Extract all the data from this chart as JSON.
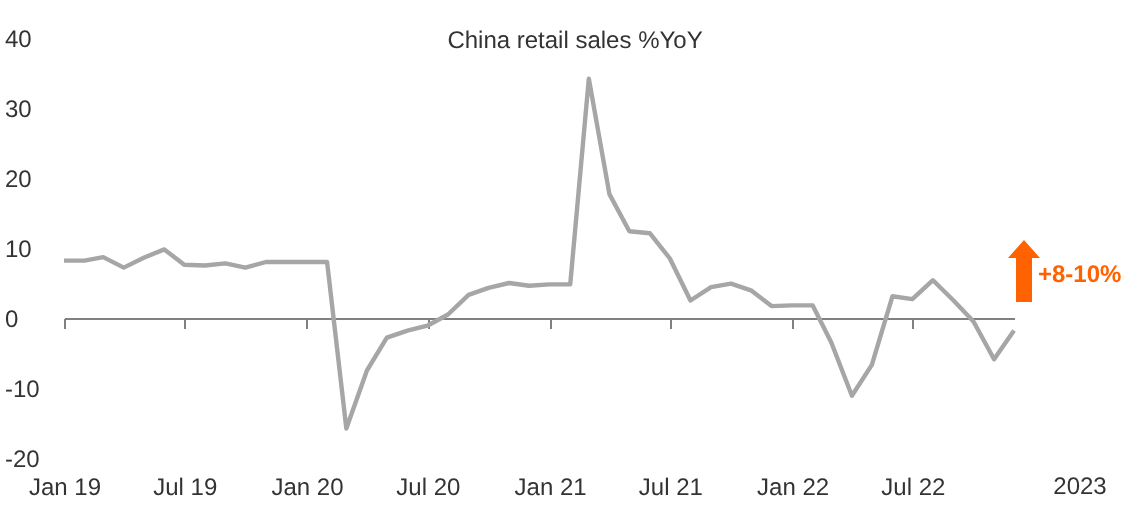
{
  "chart_data": {
    "type": "line",
    "title": "China retail sales %YoY",
    "x": [
      "2019-01",
      "2019-02",
      "2019-03",
      "2019-04",
      "2019-05",
      "2019-06",
      "2019-07",
      "2019-08",
      "2019-09",
      "2019-10",
      "2019-11",
      "2019-12",
      "2020-01",
      "2020-02",
      "2020-03",
      "2020-04",
      "2020-05",
      "2020-06",
      "2020-07",
      "2020-08",
      "2020-09",
      "2020-10",
      "2020-11",
      "2020-12",
      "2021-01",
      "2021-02",
      "2021-03",
      "2021-04",
      "2021-05",
      "2021-06",
      "2021-07",
      "2021-08",
      "2021-09",
      "2021-10",
      "2021-11",
      "2021-12",
      "2022-01",
      "2022-02",
      "2022-03",
      "2022-04",
      "2022-05",
      "2022-06",
      "2022-07",
      "2022-08",
      "2022-09",
      "2022-10",
      "2022-11",
      "2022-12"
    ],
    "series": [
      {
        "color": "#a6a6a6",
        "values": [
          8.2,
          8.2,
          8.7,
          7.2,
          8.6,
          9.8,
          7.6,
          7.5,
          7.8,
          7.2,
          8.0,
          8.0,
          8.0,
          8.0,
          -15.8,
          -7.5,
          -2.8,
          -1.8,
          -1.1,
          0.5,
          3.3,
          4.3,
          5.0,
          4.6,
          4.8,
          4.8,
          34.2,
          17.7,
          12.4,
          12.1,
          8.5,
          2.5,
          4.4,
          4.9,
          3.9,
          1.7,
          1.8,
          1.8,
          -3.5,
          -11.1,
          -6.7,
          3.1,
          2.7,
          5.4,
          2.5,
          -0.5,
          -5.9,
          -1.8
        ]
      }
    ],
    "xlim": [
      "2019-01",
      "2022-12"
    ],
    "xticks": [
      {
        "value": "2019-01",
        "label": "Jan 19"
      },
      {
        "value": "2019-07",
        "label": "Jul 19"
      },
      {
        "value": "2020-01",
        "label": "Jan 20"
      },
      {
        "value": "2020-07",
        "label": "Jul 20"
      },
      {
        "value": "2021-01",
        "label": "Jan 21"
      },
      {
        "value": "2021-07",
        "label": "Jul 21"
      },
      {
        "value": "2022-01",
        "label": "Jan 22"
      },
      {
        "value": "2022-07",
        "label": "Jul 22"
      }
    ],
    "ylim": [
      -20,
      40
    ],
    "yticks": [
      -20,
      -10,
      0,
      10,
      20,
      30,
      40
    ],
    "annotations": [
      "+8-10%",
      "2023"
    ],
    "marker": "none",
    "line_style": "solid"
  }
}
